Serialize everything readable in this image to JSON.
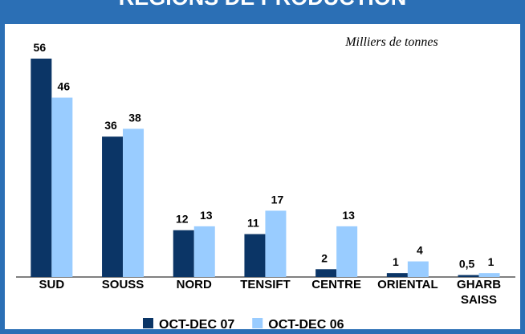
{
  "chart_data": {
    "type": "bar",
    "title": "RÉGIONS DE PRODUCTION",
    "subtitle": "Milliers de tonnes",
    "categories": [
      "SUD",
      "SOUSS",
      "NORD",
      "TENSIFT",
      "CENTRE",
      "ORIENTAL",
      "GHARB SAISS"
    ],
    "series": [
      {
        "name": "OCT-DEC 07",
        "color": "#0b3566",
        "values": [
          56,
          36,
          12,
          11,
          2,
          1,
          0.5
        ],
        "value_labels": [
          "56",
          "36",
          "12",
          "11",
          "2",
          "1",
          "0,5"
        ]
      },
      {
        "name": "OCT-DEC 06",
        "color": "#99ccff",
        "values": [
          46,
          38,
          13,
          17,
          13,
          4,
          1
        ]
      }
    ]
  }
}
